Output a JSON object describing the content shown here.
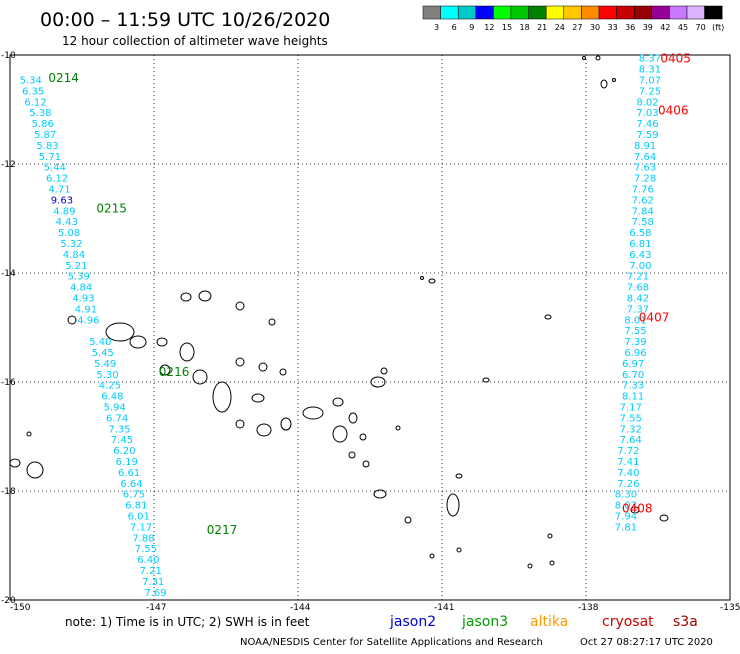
{
  "header": {
    "title": "00:00 – 11:59 UTC 10/26/2020",
    "subtitle": "12 hour collection of altimeter wave heights"
  },
  "colorbar": {
    "labels": [
      "3",
      "6",
      "9",
      "12",
      "15",
      "18",
      "21",
      "24",
      "27",
      "30",
      "33",
      "36",
      "39",
      "42",
      "45",
      "70",
      "(ft)"
    ],
    "colors": [
      "#808080",
      "#00ffff",
      "#00c8c8",
      "#0000ff",
      "#00ff00",
      "#00c800",
      "#008000",
      "#ffff00",
      "#ffc800",
      "#ff8c00",
      "#ff0000",
      "#c80000",
      "#960000",
      "#960096",
      "#c878ff",
      "#dcb4ff",
      "#000000"
    ]
  },
  "footer": {
    "note": "note:  1) Time is in UTC;  2) SWH is in feet",
    "credit": "NOAA/NESDIS Center for Satellite Applications and Research",
    "timestamp": "Oct 27 08:27:17 UTC 2020",
    "legend": [
      {
        "label": "jason2",
        "color": "#0000cc"
      },
      {
        "label": "jason3",
        "color": "#009900"
      },
      {
        "label": "altika",
        "color": "#ff9900"
      },
      {
        "label": "cryosat",
        "color": "#cc0000"
      },
      {
        "label": "s3a",
        "color": "#990000"
      }
    ]
  },
  "chart_data": {
    "type": "scatter",
    "xlim": [
      -150,
      -135
    ],
    "ylim": [
      -20,
      -10
    ],
    "xticks": [
      "-150",
      "-147",
      "-144",
      "-141",
      "-138",
      "-135"
    ],
    "yticks": [
      "-10",
      "-12",
      "-14",
      "-16",
      "-18",
      "-20"
    ],
    "grid": true,
    "pass_labels": [
      {
        "text": "0214",
        "lon": -149.2,
        "lat": -10.4,
        "color": "#008000"
      },
      {
        "text": "0215",
        "lon": -148.2,
        "lat": -12.8,
        "color": "#008000"
      },
      {
        "text": "0216",
        "lon": -146.9,
        "lat": -15.8,
        "color": "#008000"
      },
      {
        "text": "0217",
        "lon": -145.9,
        "lat": -18.7,
        "color": "#008000"
      },
      {
        "text": "0405",
        "lon": -136.45,
        "lat": -10.05,
        "color": "#ff0000"
      },
      {
        "text": "0406",
        "lon": -136.5,
        "lat": -11.0,
        "color": "#ff0000"
      },
      {
        "text": "0407",
        "lon": -136.9,
        "lat": -14.8,
        "color": "#ff0000"
      },
      {
        "text": "0408",
        "lon": -137.25,
        "lat": -18.3,
        "color": "#ff0000"
      }
    ],
    "series": [
      {
        "name": "jason3",
        "color": "#00ccff",
        "points": [
          {
            "lon": -149.8,
            "lat": -10.45,
            "swh": 5.34
          },
          {
            "lon": -149.75,
            "lat": -10.65,
            "swh": 6.35
          },
          {
            "lon": -149.7,
            "lat": -10.85,
            "swh": 6.12
          },
          {
            "lon": -149.6,
            "lat": -11.05,
            "swh": 5.38
          },
          {
            "lon": -149.55,
            "lat": -11.25,
            "swh": 5.86
          },
          {
            "lon": -149.5,
            "lat": -11.45,
            "swh": 5.87
          },
          {
            "lon": -149.45,
            "lat": -11.65,
            "swh": 5.83
          },
          {
            "lon": -149.4,
            "lat": -11.85,
            "swh": 5.71
          },
          {
            "lon": -149.3,
            "lat": -12.05,
            "swh": 5.44
          },
          {
            "lon": -149.25,
            "lat": -12.25,
            "swh": 6.12
          },
          {
            "lon": -149.2,
            "lat": -12.45,
            "swh": 4.71
          },
          {
            "lon": -149.15,
            "lat": -12.65,
            "swh": 9.63,
            "color": "#0000cc"
          },
          {
            "lon": -149.1,
            "lat": -12.85,
            "swh": 4.89
          },
          {
            "lon": -149.05,
            "lat": -13.05,
            "swh": 4.43
          },
          {
            "lon": -149.0,
            "lat": -13.25,
            "swh": 5.08
          },
          {
            "lon": -148.95,
            "lat": -13.45,
            "swh": 5.32
          },
          {
            "lon": -148.9,
            "lat": -13.65,
            "swh": 4.84
          },
          {
            "lon": -148.85,
            "lat": -13.85,
            "swh": 5.21
          },
          {
            "lon": -148.8,
            "lat": -14.05,
            "swh": 5.39
          },
          {
            "lon": -148.75,
            "lat": -14.25,
            "swh": 4.84
          },
          {
            "lon": -148.7,
            "lat": -14.45,
            "swh": 4.93
          },
          {
            "lon": -148.65,
            "lat": -14.65,
            "swh": 4.91
          },
          {
            "lon": -148.6,
            "lat": -14.85,
            "swh": 4.96
          },
          {
            "lon": -148.35,
            "lat": -15.25,
            "swh": 5.4
          },
          {
            "lon": -148.3,
            "lat": -15.45,
            "swh": 5.45
          },
          {
            "lon": -148.25,
            "lat": -15.65,
            "swh": 5.49
          },
          {
            "lon": -148.2,
            "lat": -15.85,
            "swh": 5.3
          },
          {
            "lon": -148.15,
            "lat": -16.05,
            "swh": 4.25
          },
          {
            "lon": -148.1,
            "lat": -16.25,
            "swh": 6.48
          },
          {
            "lon": -148.05,
            "lat": -16.45,
            "swh": 5.94
          },
          {
            "lon": -148.0,
            "lat": -16.65,
            "swh": 6.74
          },
          {
            "lon": -147.95,
            "lat": -16.85,
            "swh": 7.35
          },
          {
            "lon": -147.9,
            "lat": -17.05,
            "swh": 7.45
          },
          {
            "lon": -147.85,
            "lat": -17.25,
            "swh": 6.2
          },
          {
            "lon": -147.8,
            "lat": -17.45,
            "swh": 6.19
          },
          {
            "lon": -147.75,
            "lat": -17.65,
            "swh": 6.61
          },
          {
            "lon": -147.7,
            "lat": -17.85,
            "swh": 6.64
          },
          {
            "lon": -147.65,
            "lat": -18.05,
            "swh": 6.75
          },
          {
            "lon": -147.6,
            "lat": -18.25,
            "swh": 6.81
          },
          {
            "lon": -147.55,
            "lat": -18.45,
            "swh": 6.01
          },
          {
            "lon": -147.5,
            "lat": -18.65,
            "swh": 7.17
          },
          {
            "lon": -147.45,
            "lat": -18.85,
            "swh": 7.88
          },
          {
            "lon": -147.4,
            "lat": -19.05,
            "swh": 7.55
          },
          {
            "lon": -147.35,
            "lat": -19.25,
            "swh": 6.4
          },
          {
            "lon": -147.3,
            "lat": -19.45,
            "swh": 7.21
          },
          {
            "lon": -147.25,
            "lat": -19.65,
            "swh": 7.31
          },
          {
            "lon": -147.2,
            "lat": -19.85,
            "swh": 7.69
          }
        ]
      },
      {
        "name": "cryosat",
        "color": "#00ccff",
        "points": [
          {
            "lon": -136.9,
            "lat": -10.05,
            "swh": 8.37
          },
          {
            "lon": -136.9,
            "lat": -10.25,
            "swh": 8.31
          },
          {
            "lon": -136.9,
            "lat": -10.45,
            "swh": 7.07
          },
          {
            "lon": -136.9,
            "lat": -10.65,
            "swh": 7.25
          },
          {
            "lon": -136.95,
            "lat": -10.85,
            "swh": 8.02
          },
          {
            "lon": -136.95,
            "lat": -11.05,
            "swh": 7.03
          },
          {
            "lon": -136.95,
            "lat": -11.25,
            "swh": 7.46
          },
          {
            "lon": -136.95,
            "lat": -11.45,
            "swh": 7.59
          },
          {
            "lon": -137.0,
            "lat": -11.65,
            "swh": 8.91
          },
          {
            "lon": -137.0,
            "lat": -11.85,
            "swh": 7.64
          },
          {
            "lon": -137.0,
            "lat": -12.05,
            "swh": 7.63
          },
          {
            "lon": -137.0,
            "lat": -12.25,
            "swh": 7.28
          },
          {
            "lon": -137.05,
            "lat": -12.45,
            "swh": 7.76
          },
          {
            "lon": -137.05,
            "lat": -12.65,
            "swh": 7.62
          },
          {
            "lon": -137.05,
            "lat": -12.85,
            "swh": 7.84
          },
          {
            "lon": -137.05,
            "lat": -13.05,
            "swh": 7.58
          },
          {
            "lon": -137.1,
            "lat": -13.25,
            "swh": 6.58
          },
          {
            "lon": -137.1,
            "lat": -13.45,
            "swh": 6.81
          },
          {
            "lon": -137.1,
            "lat": -13.65,
            "swh": 6.43
          },
          {
            "lon": -137.1,
            "lat": -13.85,
            "swh": 7.0
          },
          {
            "lon": -137.15,
            "lat": -14.05,
            "swh": 7.21
          },
          {
            "lon": -137.15,
            "lat": -14.25,
            "swh": 7.68
          },
          {
            "lon": -137.15,
            "lat": -14.45,
            "swh": 8.42
          },
          {
            "lon": -137.15,
            "lat": -14.65,
            "swh": 7.37
          },
          {
            "lon": -137.2,
            "lat": -14.85,
            "swh": 8.01
          },
          {
            "lon": -137.2,
            "lat": -15.05,
            "swh": 7.55
          },
          {
            "lon": -137.2,
            "lat": -15.25,
            "swh": 7.39
          },
          {
            "lon": -137.2,
            "lat": -15.45,
            "swh": 6.96
          },
          {
            "lon": -137.25,
            "lat": -15.65,
            "swh": 6.97
          },
          {
            "lon": -137.25,
            "lat": -15.85,
            "swh": 6.7
          },
          {
            "lon": -137.25,
            "lat": -16.05,
            "swh": 7.33
          },
          {
            "lon": -137.25,
            "lat": -16.25,
            "swh": 8.11
          },
          {
            "lon": -137.3,
            "lat": -16.45,
            "swh": 7.17
          },
          {
            "lon": -137.3,
            "lat": -16.65,
            "swh": 7.55
          },
          {
            "lon": -137.3,
            "lat": -16.85,
            "swh": 7.32
          },
          {
            "lon": -137.3,
            "lat": -17.05,
            "swh": 7.64
          },
          {
            "lon": -137.35,
            "lat": -17.25,
            "swh": 7.72
          },
          {
            "lon": -137.35,
            "lat": -17.45,
            "swh": 7.41
          },
          {
            "lon": -137.35,
            "lat": -17.65,
            "swh": 7.4
          },
          {
            "lon": -137.35,
            "lat": -17.85,
            "swh": 7.26
          },
          {
            "lon": -137.4,
            "lat": -18.05,
            "swh": 8.3
          },
          {
            "lon": -137.4,
            "lat": -18.25,
            "swh": 8.07
          },
          {
            "lon": -137.4,
            "lat": -18.45,
            "swh": 7.94
          },
          {
            "lon": -137.4,
            "lat": -18.65,
            "swh": 7.81
          }
        ]
      }
    ]
  }
}
